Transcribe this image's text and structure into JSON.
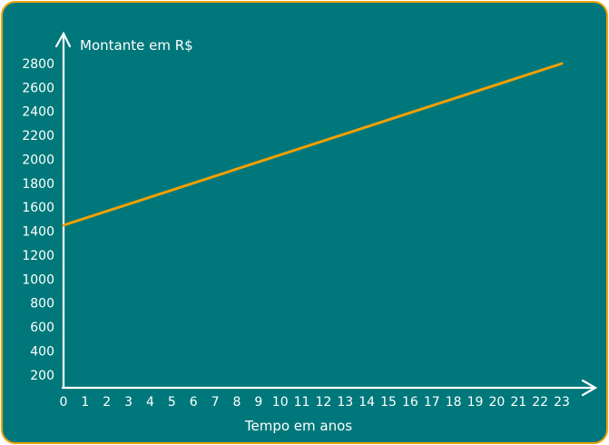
{
  "chart_data": {
    "type": "line",
    "title": "",
    "ylabel": "Montante em R$",
    "xlabel": "Tempo em anos",
    "x_ticks": [
      "0",
      "1",
      "2",
      "3",
      "4",
      "5",
      "6",
      "7",
      "8",
      "9",
      "10",
      "11",
      "12",
      "13",
      "14",
      "15",
      "16",
      "17",
      "18",
      "19",
      "20",
      "21",
      "22",
      "23"
    ],
    "y_ticks": [
      "200",
      "400",
      "600",
      "800",
      "1000",
      "1200",
      "1400",
      "1600",
      "1800",
      "2000",
      "2200",
      "2400",
      "2600",
      "2800"
    ],
    "xlim": [
      0,
      23
    ],
    "ylim": [
      100,
      2800
    ],
    "grid": false,
    "series": [
      {
        "x": [
          0,
          23
        ],
        "values": [
          1450,
          2800
        ],
        "color": "#f5a000"
      }
    ],
    "colors": {
      "background": "#00787b",
      "border": "#f0a30a",
      "axis": "#ffffff"
    }
  }
}
